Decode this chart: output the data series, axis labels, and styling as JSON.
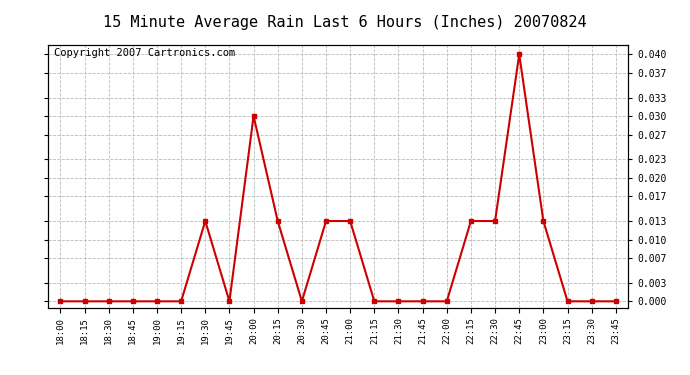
{
  "title": "15 Minute Average Rain Last 6 Hours (Inches) 20070824",
  "copyright": "Copyright 2007 Cartronics.com",
  "x_labels": [
    "18:00",
    "18:15",
    "18:30",
    "18:45",
    "19:00",
    "19:15",
    "19:30",
    "19:45",
    "20:00",
    "20:15",
    "20:30",
    "20:45",
    "21:00",
    "21:15",
    "21:30",
    "21:45",
    "22:00",
    "22:15",
    "22:30",
    "22:45",
    "23:00",
    "23:15",
    "23:30",
    "23:45"
  ],
  "y_values": [
    0.0,
    0.0,
    0.0,
    0.0,
    0.0,
    0.0,
    0.013,
    0.0,
    0.03,
    0.013,
    0.0,
    0.013,
    0.013,
    0.0,
    0.0,
    0.0,
    0.0,
    0.013,
    0.013,
    0.04,
    0.013,
    0.0,
    0.0,
    0.0
  ],
  "line_color": "#cc0000",
  "marker": "s",
  "marker_size": 3,
  "background_color": "#ffffff",
  "grid_color": "#bbbbbb",
  "y_ticks": [
    0.0,
    0.003,
    0.007,
    0.01,
    0.013,
    0.017,
    0.02,
    0.023,
    0.027,
    0.03,
    0.033,
    0.037,
    0.04
  ],
  "ylim": [
    -0.001,
    0.0415
  ],
  "title_fontsize": 11,
  "copyright_fontsize": 7.5
}
